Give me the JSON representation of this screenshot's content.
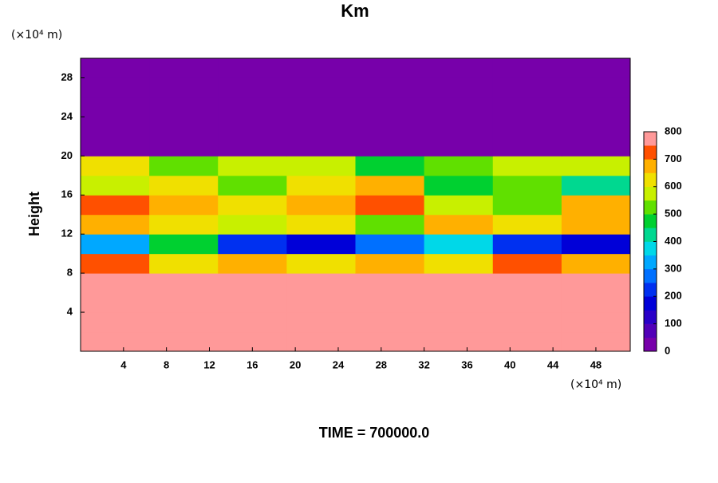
{
  "chart_data": {
    "type": "heatmap",
    "title": "Km",
    "y_unit_label": "(×10⁴ m)",
    "x_unit_label": "(×10⁴ m)",
    "ylabel": "Height",
    "footer": "TIME = 700000.0",
    "x": [
      0,
      6.4,
      12.8,
      19.2,
      25.6,
      32,
      38.4,
      44.8,
      51.2
    ],
    "y": [
      0,
      2,
      4,
      6,
      8,
      10,
      12,
      14,
      16,
      18,
      20,
      22,
      24,
      26,
      28,
      30
    ],
    "z": [
      [
        800,
        800,
        800,
        800,
        800,
        800,
        800,
        800
      ],
      [
        800,
        800,
        780,
        800,
        800,
        790,
        800,
        780
      ],
      [
        800,
        790,
        800,
        780,
        800,
        770,
        800,
        770
      ],
      [
        800,
        800,
        790,
        780,
        800,
        800,
        800,
        800
      ],
      [
        700,
        600,
        650,
        600,
        650,
        600,
        700,
        650
      ],
      [
        300,
        450,
        200,
        150,
        250,
        350,
        200,
        150
      ],
      [
        650,
        600,
        550,
        600,
        500,
        650,
        600,
        650
      ],
      [
        700,
        650,
        600,
        650,
        700,
        550,
        500,
        650
      ],
      [
        550,
        600,
        500,
        600,
        650,
        450,
        500,
        400
      ],
      [
        600,
        500,
        550,
        550,
        450,
        500,
        550,
        550
      ],
      [
        0,
        0,
        0,
        0,
        0,
        0,
        0,
        0
      ],
      [
        0,
        0,
        0,
        0,
        0,
        0,
        0,
        0
      ],
      [
        0,
        0,
        0,
        0,
        0,
        0,
        0,
        0
      ],
      [
        0,
        0,
        0,
        0,
        0,
        0,
        0,
        0
      ],
      [
        0,
        0,
        0,
        0,
        0,
        0,
        0,
        0
      ]
    ],
    "xlim": [
      0,
      51.2
    ],
    "ylim": [
      0,
      30
    ],
    "xticks": [
      4,
      8,
      12,
      16,
      20,
      24,
      28,
      32,
      36,
      40,
      44,
      48
    ],
    "yticks": [
      4,
      8,
      12,
      16,
      20,
      24,
      28
    ],
    "clim": [
      0,
      800
    ],
    "cticks": [
      0,
      100,
      200,
      300,
      400,
      500,
      600,
      700,
      800
    ],
    "colors": [
      "#7700aa",
      "#5200b8",
      "#2a00c8",
      "#0000d8",
      "#0030f0",
      "#0070ff",
      "#00a8ff",
      "#00d8e8",
      "#00d890",
      "#00d030",
      "#60e000",
      "#c8f000",
      "#f0e000",
      "#ffb000",
      "#ff5000",
      "#ff9999"
    ]
  }
}
